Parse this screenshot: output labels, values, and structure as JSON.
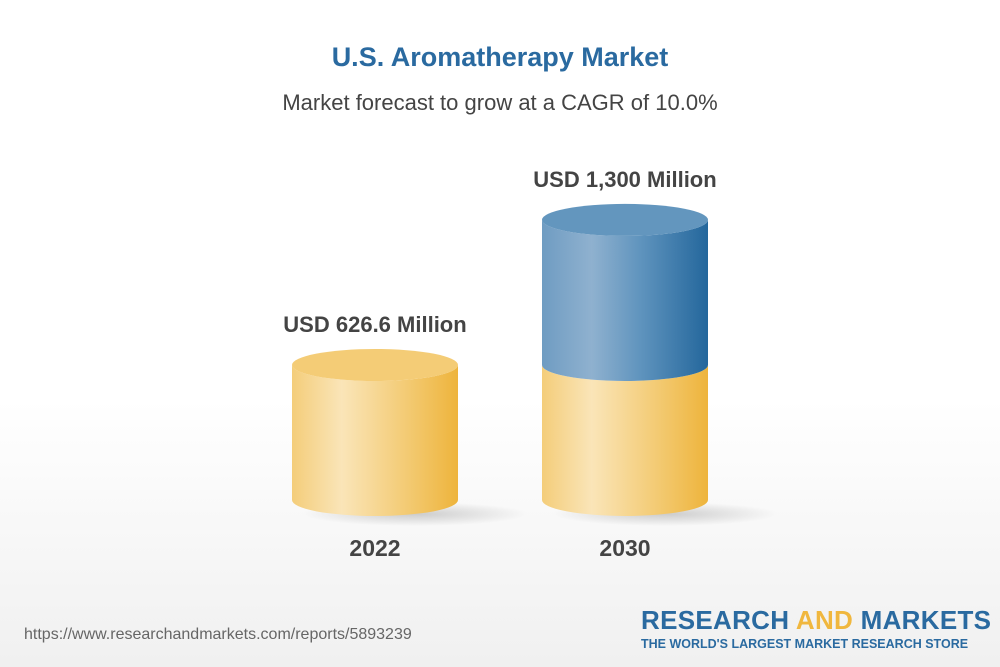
{
  "title": "U.S. Aromatherapy Market",
  "subtitle": "Market forecast to grow at a CAGR of 10.0%",
  "chart_data": {
    "type": "bar",
    "style": "3d-cylinder",
    "categories": [
      "2022",
      "2030"
    ],
    "values": [
      626.6,
      1300
    ],
    "data_labels": [
      "USD 626.6 Million",
      "USD 1,300 Million"
    ],
    "unit": "USD Million",
    "colors": {
      "base": "#f0b73e",
      "growth": "#2a6aa0"
    }
  },
  "footer": {
    "url": "https://www.researchandmarkets.com/reports/5893239",
    "logo_line1_a": "RESEARCH ",
    "logo_line1_b": "AND",
    "logo_line1_c": " MARKETS",
    "logo_line2": "THE WORLD'S LARGEST MARKET RESEARCH STORE"
  }
}
